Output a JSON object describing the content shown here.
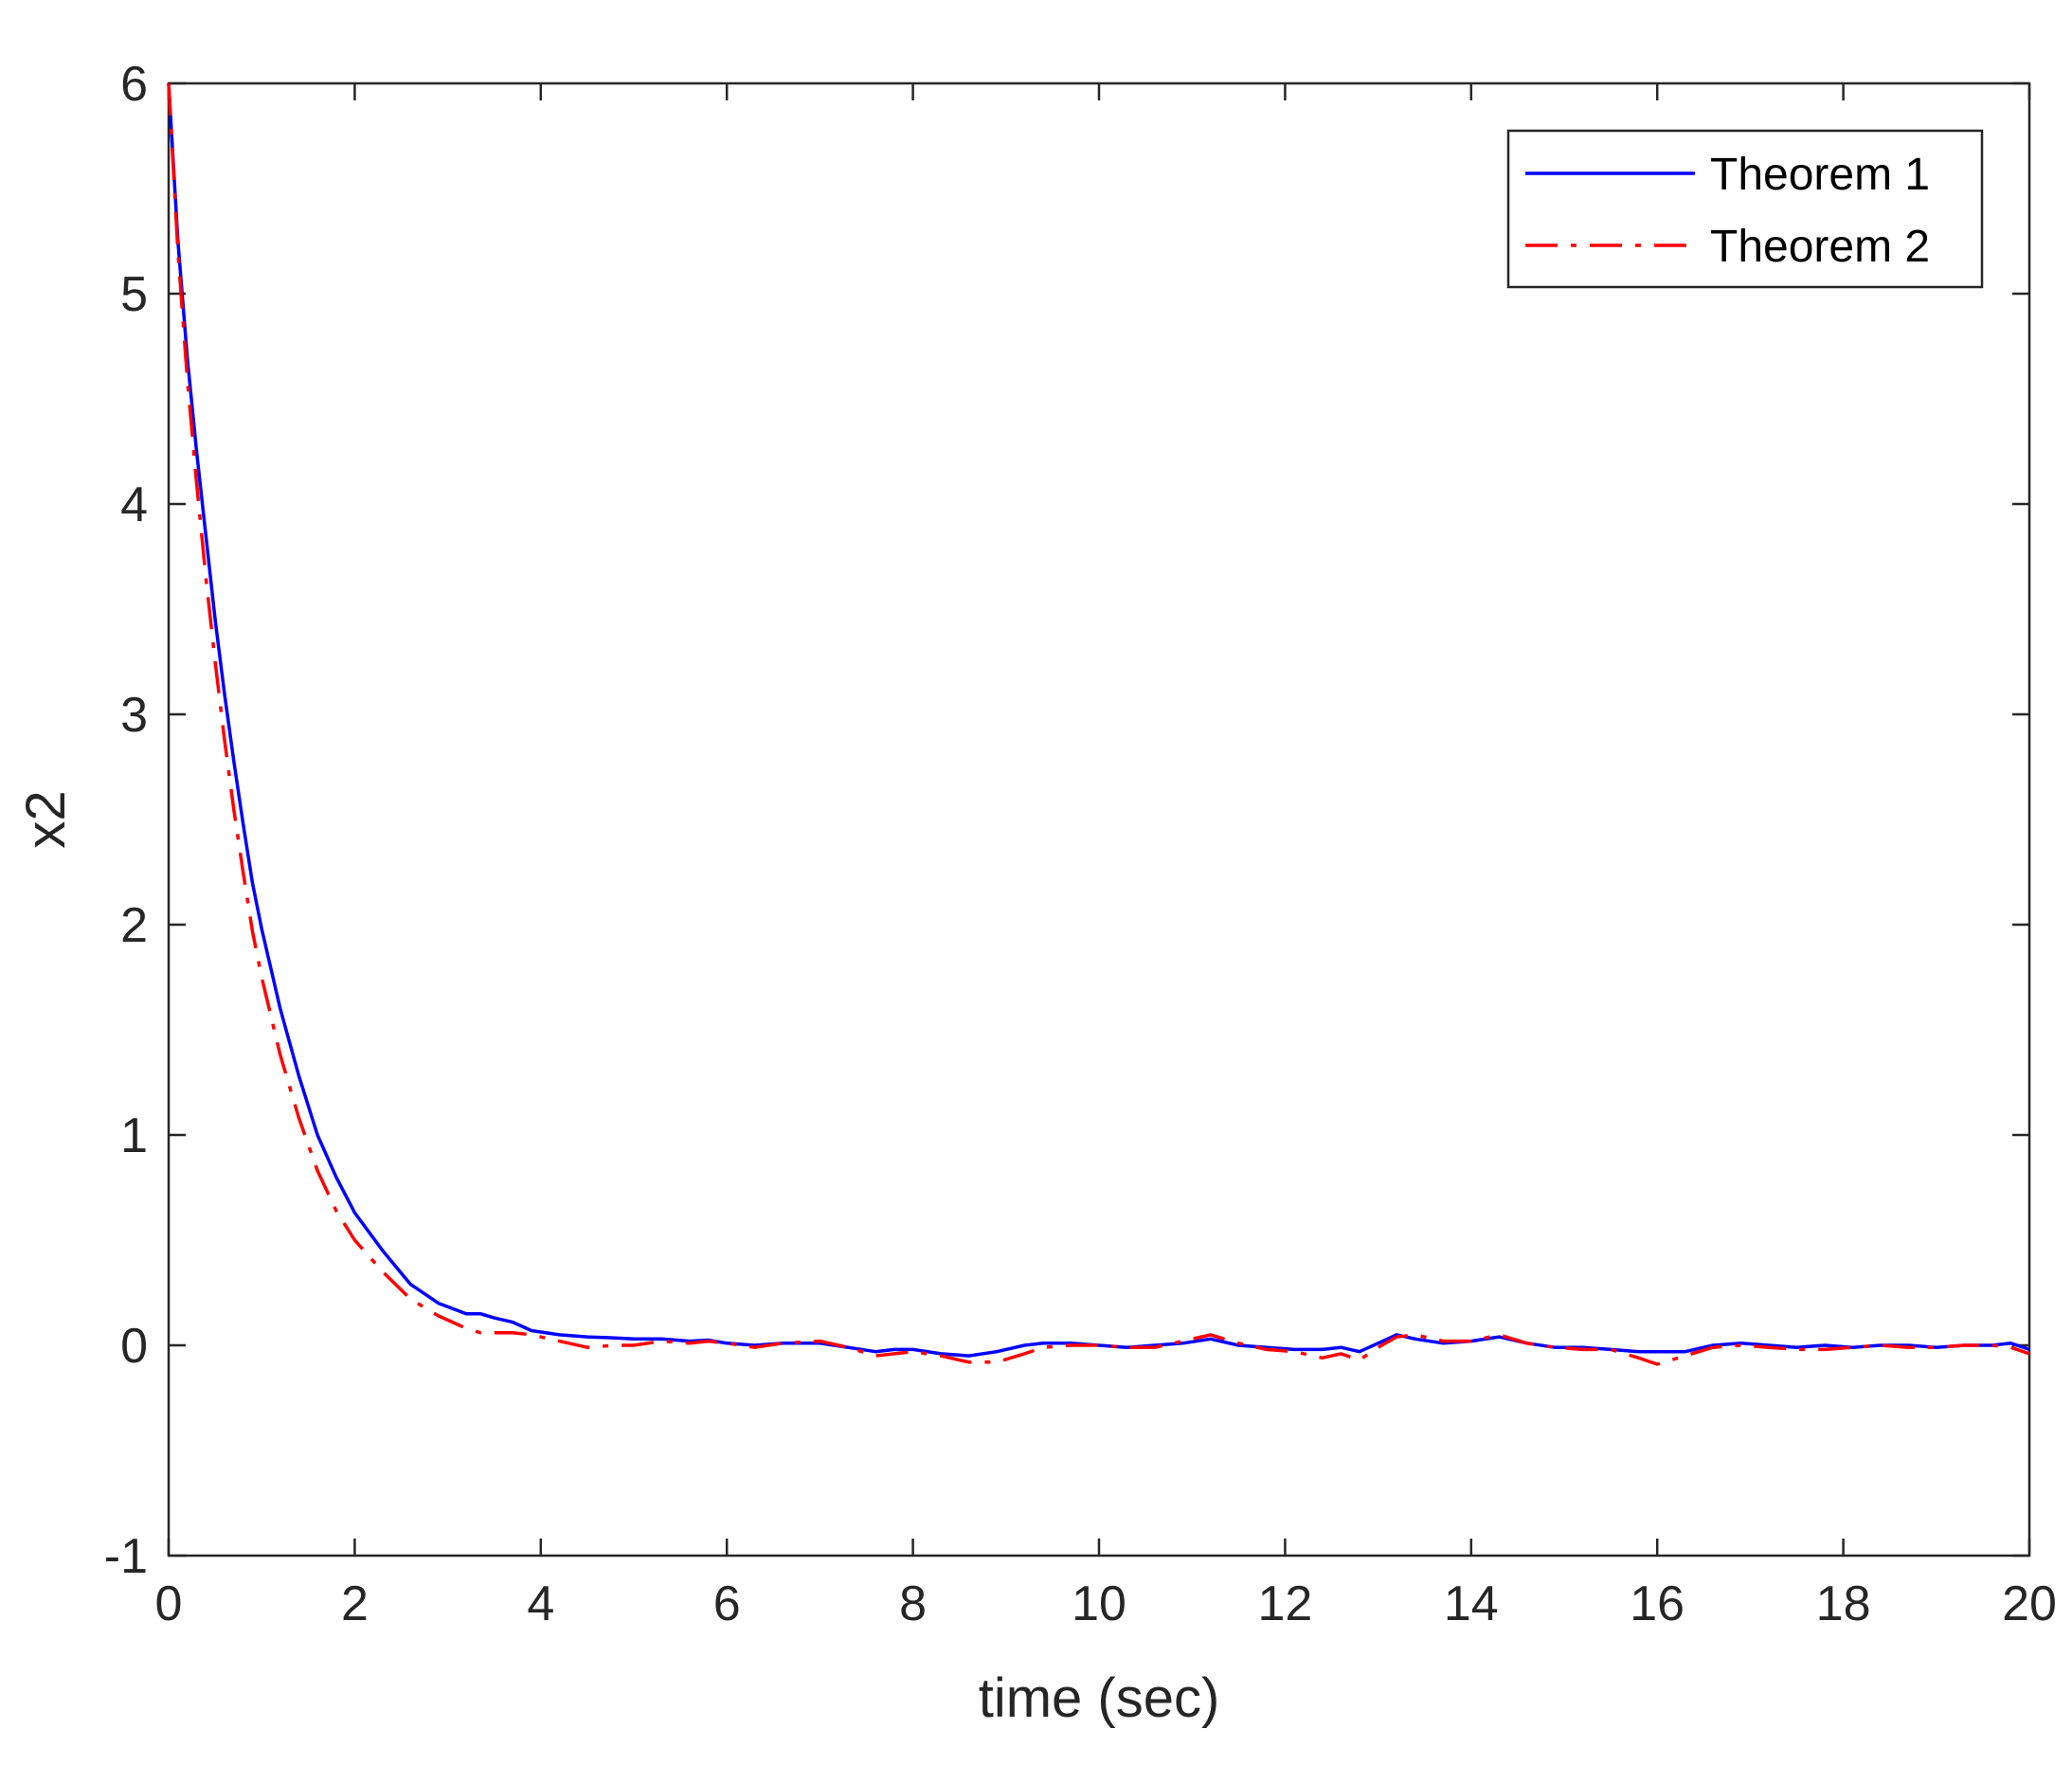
{
  "chart_data": {
    "type": "line",
    "title": "",
    "xlabel": "time (sec)",
    "ylabel": "x2",
    "xlim": [
      0,
      20
    ],
    "ylim": [
      -1,
      6
    ],
    "xticks": [
      0,
      2,
      4,
      6,
      8,
      10,
      12,
      14,
      16,
      18,
      20
    ],
    "yticks": [
      -1,
      0,
      1,
      2,
      3,
      4,
      5,
      6
    ],
    "xtick_labels": [
      "0",
      "2",
      "4",
      "6",
      "8",
      "10",
      "12",
      "14",
      "16",
      "18",
      "20"
    ],
    "ytick_labels": [
      "-1",
      "0",
      "1",
      "2",
      "3",
      "4",
      "5",
      "6"
    ],
    "grid": false,
    "legend_position": "top-right",
    "series": [
      {
        "name": "Theorem 1",
        "color": "#0000ff",
        "line_style": "solid",
        "x": [
          0,
          0.1,
          0.2,
          0.3,
          0.4,
          0.5,
          0.6,
          0.7,
          0.8,
          0.9,
          1.0,
          1.2,
          1.4,
          1.6,
          1.8,
          2.0,
          2.3,
          2.6,
          2.9,
          3.2,
          3.35,
          3.5,
          3.7,
          3.9,
          4.2,
          4.5,
          4.8,
          5.0,
          5.3,
          5.6,
          5.8,
          6.0,
          6.3,
          6.6,
          7.0,
          7.3,
          7.6,
          7.8,
          8.0,
          8.3,
          8.6,
          8.9,
          9.2,
          9.4,
          9.7,
          10.0,
          10.3,
          10.6,
          10.9,
          11.2,
          11.5,
          11.8,
          12.1,
          12.4,
          12.6,
          12.8,
          13.0,
          13.2,
          13.4,
          13.7,
          14.0,
          14.3,
          14.6,
          14.9,
          15.2,
          15.5,
          15.8,
          16.0,
          16.3,
          16.6,
          16.9,
          17.2,
          17.5,
          17.8,
          18.1,
          18.4,
          18.7,
          19.0,
          19.3,
          19.6,
          19.8,
          20.0
        ],
        "y": [
          6.0,
          5.25,
          4.7,
          4.25,
          3.85,
          3.45,
          3.1,
          2.78,
          2.48,
          2.2,
          1.98,
          1.6,
          1.28,
          1.0,
          0.8,
          0.63,
          0.45,
          0.29,
          0.2,
          0.15,
          0.15,
          0.13,
          0.11,
          0.07,
          0.05,
          0.04,
          0.035,
          0.03,
          0.03,
          0.02,
          0.025,
          0.01,
          0.0,
          0.01,
          0.01,
          -0.01,
          -0.03,
          -0.02,
          -0.02,
          -0.04,
          -0.05,
          -0.03,
          0.0,
          0.01,
          0.01,
          0.0,
          -0.01,
          0.0,
          0.01,
          0.03,
          0.0,
          -0.01,
          -0.02,
          -0.02,
          -0.01,
          -0.03,
          0.01,
          0.05,
          0.03,
          0.01,
          0.02,
          0.04,
          0.01,
          -0.01,
          -0.01,
          -0.02,
          -0.03,
          -0.03,
          -0.03,
          0.0,
          0.01,
          0.0,
          -0.01,
          0.0,
          -0.01,
          0.0,
          0.0,
          -0.01,
          0.0,
          0.0,
          0.01,
          -0.02
        ]
      },
      {
        "name": "Theorem 2",
        "color": "#ff0000",
        "line_style": "dash-dot",
        "x": [
          0,
          0.1,
          0.2,
          0.3,
          0.4,
          0.5,
          0.6,
          0.7,
          0.8,
          0.9,
          1.0,
          1.2,
          1.4,
          1.6,
          1.8,
          2.0,
          2.3,
          2.6,
          2.9,
          3.2,
          3.35,
          3.5,
          3.7,
          3.9,
          4.2,
          4.5,
          4.8,
          5.0,
          5.3,
          5.6,
          5.8,
          6.0,
          6.3,
          6.6,
          7.0,
          7.3,
          7.6,
          7.8,
          8.0,
          8.3,
          8.6,
          8.9,
          9.2,
          9.4,
          9.7,
          10.0,
          10.3,
          10.6,
          10.9,
          11.2,
          11.5,
          11.8,
          12.1,
          12.4,
          12.6,
          12.8,
          13.0,
          13.2,
          13.4,
          13.7,
          14.0,
          14.3,
          14.6,
          14.9,
          15.2,
          15.5,
          15.8,
          16.0,
          16.3,
          16.6,
          16.9,
          17.2,
          17.5,
          17.8,
          18.1,
          18.4,
          18.7,
          19.0,
          19.3,
          19.6,
          19.8,
          20.0
        ],
        "y": [
          6.0,
          5.2,
          4.6,
          4.1,
          3.65,
          3.25,
          2.88,
          2.55,
          2.25,
          1.97,
          1.75,
          1.38,
          1.08,
          0.83,
          0.64,
          0.5,
          0.35,
          0.22,
          0.14,
          0.08,
          0.06,
          0.06,
          0.06,
          0.05,
          0.02,
          -0.01,
          0.0,
          0.0,
          0.02,
          0.01,
          0.02,
          0.01,
          -0.01,
          0.01,
          0.02,
          -0.01,
          -0.05,
          -0.04,
          -0.03,
          -0.05,
          -0.08,
          -0.08,
          -0.04,
          -0.01,
          0.0,
          0.0,
          -0.01,
          -0.01,
          0.02,
          0.05,
          0.01,
          -0.02,
          -0.03,
          -0.06,
          -0.04,
          -0.07,
          -0.01,
          0.04,
          0.05,
          0.02,
          0.02,
          0.05,
          0.01,
          -0.01,
          -0.02,
          -0.02,
          -0.06,
          -0.09,
          -0.05,
          -0.01,
          0.0,
          -0.01,
          -0.02,
          -0.02,
          -0.01,
          0.0,
          -0.01,
          -0.01,
          0.0,
          0.0,
          -0.01,
          -0.04
        ]
      }
    ]
  }
}
